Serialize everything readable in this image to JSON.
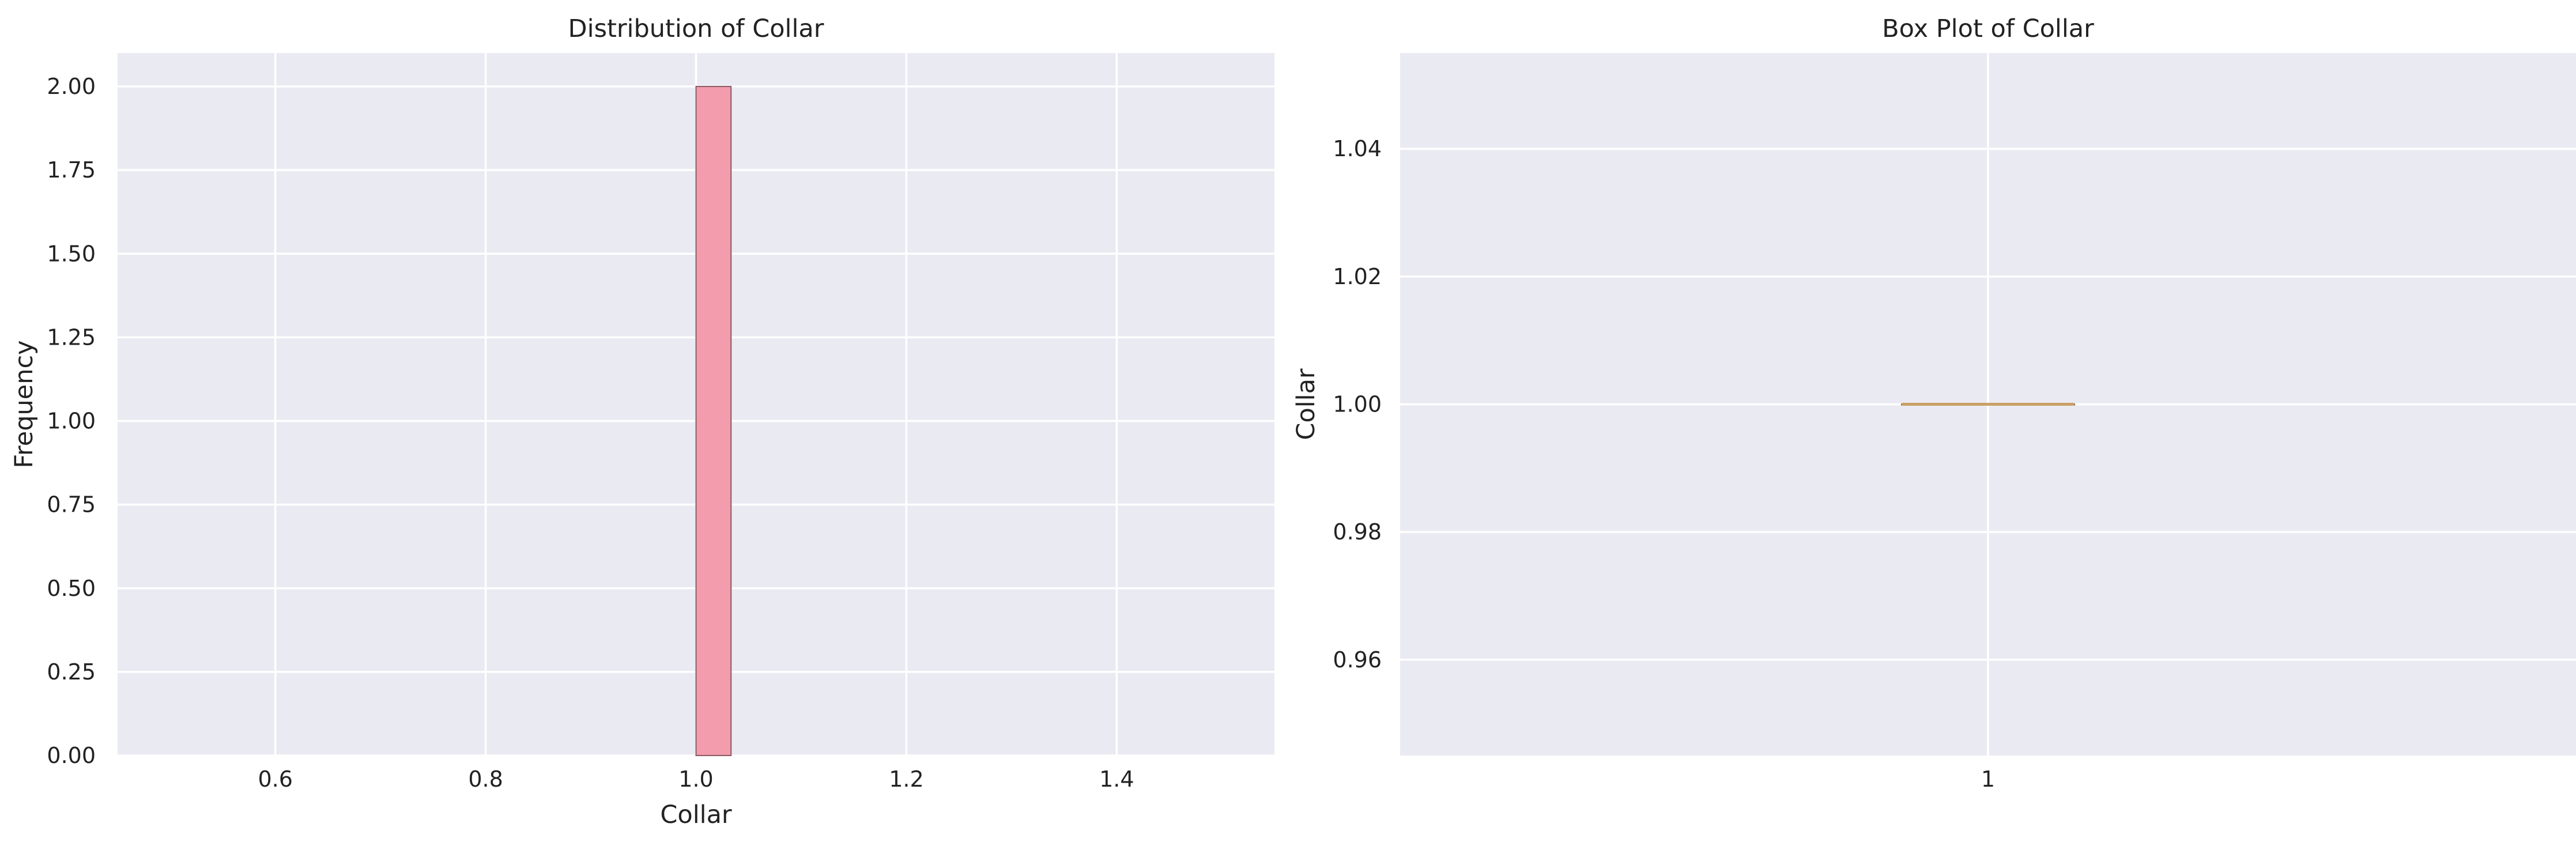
{
  "colors": {
    "axes_bg": "#eaeaf2",
    "grid": "#ffffff",
    "hist_bar": "#f29cad",
    "hist_edge": "#8a5a64",
    "median_line": "#c9a064",
    "text": "#222222"
  },
  "chart_data": [
    {
      "type": "bar",
      "subtype": "histogram",
      "title": "Distribution of Collar",
      "xlabel": "Collar",
      "ylabel": "Frequency",
      "xlim": [
        0.45,
        1.55
      ],
      "ylim": [
        0,
        2.1
      ],
      "xticks": [
        0.6,
        0.8,
        1.0,
        1.2,
        1.4
      ],
      "xtick_labels": [
        "0.6",
        "0.8",
        "1.0",
        "1.2",
        "1.4"
      ],
      "yticks": [
        0,
        0.25,
        0.5,
        0.75,
        1.0,
        1.25,
        1.5,
        1.75,
        2.0
      ],
      "ytick_labels": [
        "0.00",
        "0.25",
        "0.50",
        "0.75",
        "1.00",
        "1.25",
        "1.50",
        "1.75",
        "2.00"
      ],
      "bins": [
        {
          "x0": 1.0,
          "x1": 1.0333,
          "count": 2
        }
      ],
      "grid": true
    },
    {
      "type": "box",
      "title": "Box Plot of Collar",
      "xlabel": "",
      "ylabel": "Collar",
      "ylim": [
        0.945,
        1.055
      ],
      "yticks": [
        0.96,
        0.98,
        1.0,
        1.02,
        1.04
      ],
      "ytick_labels": [
        "0.96",
        "0.98",
        "1.00",
        "1.02",
        "1.04"
      ],
      "categories": [
        "1"
      ],
      "boxes": [
        {
          "min": 1.0,
          "q1": 1.0,
          "median": 1.0,
          "q3": 1.0,
          "max": 1.0
        }
      ],
      "grid": true
    }
  ]
}
